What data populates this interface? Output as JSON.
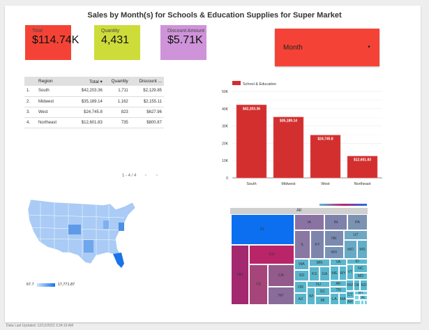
{
  "title": "Sales by Month(s) for Schools & Education Supplies for Super Market",
  "kpis": [
    {
      "label": "Total",
      "value": "$114.74K",
      "color": "#f44336"
    },
    {
      "label": "Quantity",
      "value": "4,431",
      "color": "#cddc39"
    },
    {
      "label": "Discount Amount",
      "value": "$5.71K",
      "color": "#ce93d8"
    }
  ],
  "dropdown": {
    "label": "Month",
    "icon": "caret-down-icon"
  },
  "table": {
    "headers": [
      "Region",
      "Total ▾",
      "Quantity",
      "Discount ..."
    ],
    "rows": [
      [
        "1.",
        "South",
        "$42,203.36",
        "1,711",
        "$2,129.85"
      ],
      [
        "2.",
        "Midwest",
        "$35,189.14",
        "1,162",
        "$2,155.11"
      ],
      [
        "3.",
        "West",
        "$24,745.8",
        "823",
        "$627.96"
      ],
      [
        "4.",
        "Northeast",
        "$12,601.83",
        "735",
        "$800.87"
      ]
    ],
    "pagination": "1 - 4 / 4"
  },
  "chart_data": {
    "type": "bar",
    "legend": "School & Education",
    "legend_placement": "top-left",
    "categories": [
      "South",
      "Midwest",
      "West",
      "Northeast"
    ],
    "values": [
      42203.36,
      35189.14,
      24745.8,
      12601.83
    ],
    "data_labels": [
      "$42,203.36",
      "$35,189.14",
      "$24,745.8",
      "$12,601.83"
    ],
    "yticks": [
      "0",
      "10K",
      "20K",
      "30K",
      "40K",
      "50K"
    ],
    "ylim": [
      0,
      50000
    ],
    "color": "#d32f2f",
    "grid": true
  },
  "map": {
    "legend_min": "67.7",
    "legend_max": "17,771.87",
    "color_low": "#cfe3fb",
    "color_high": "#1a73e8"
  },
  "treemap": {
    "root": "All",
    "cells": [
      {
        "label": "FL",
        "color": "#0b6ff0"
      },
      {
        "label": "OH",
        "color": "#a3286f"
      },
      {
        "label": "CO",
        "color": "#b92568"
      },
      {
        "label": "TX",
        "color": "#a6457a"
      },
      {
        "label": "CA",
        "color": "#935a8c"
      },
      {
        "label": "NY",
        "color": "#8a6c9b"
      },
      {
        "label": "IA",
        "color": "#8a73a2"
      },
      {
        "label": "IN",
        "color": "#7e81aa"
      },
      {
        "label": "PA",
        "color": "#7b92b3"
      },
      {
        "label": "IL",
        "color": "#8a78a4"
      },
      {
        "label": "KY",
        "color": "#7e85ad"
      },
      {
        "label": "NE",
        "color": "#7b8bb0"
      },
      {
        "label": "WV",
        "color": "#7893b6"
      },
      {
        "label": "UT",
        "color": "#6ea7c2"
      },
      {
        "label": "MO",
        "color": "#68aac6"
      },
      {
        "label": "MS",
        "color": "#62aec9"
      },
      {
        "label": "WA",
        "color": "#5db3cb"
      },
      {
        "label": "SD",
        "color": "#5bb5cc"
      },
      {
        "label": "OR",
        "color": "#5ab6cc"
      },
      {
        "label": "AZ",
        "color": "#5ab6cc"
      },
      {
        "label": "MN",
        "color": "#5bb5cc"
      },
      {
        "label": "KS",
        "color": "#5ab6cd"
      },
      {
        "label": "GA",
        "color": "#5ab6cd"
      },
      {
        "label": "NJ",
        "color": "#5ab7cd"
      },
      {
        "label": "WI",
        "color": "#59b7cd"
      },
      {
        "label": "SC",
        "color": "#59b7cd"
      },
      {
        "label": "MI",
        "color": "#59b7cd"
      },
      {
        "label": "VA",
        "color": "#59b7ce"
      },
      {
        "label": "ME",
        "color": "#58b8ce"
      },
      {
        "label": "WY",
        "color": "#58b8ce"
      },
      {
        "label": "AK",
        "color": "#58b8ce"
      },
      {
        "label": "TN",
        "color": "#58b8ce"
      },
      {
        "label": "LA",
        "color": "#57b9cf"
      },
      {
        "label": "MA",
        "color": "#57b9cf"
      },
      {
        "label": "ID",
        "color": "#58b8ce"
      },
      {
        "label": "VT",
        "color": "#57b9cf"
      },
      {
        "label": "NC",
        "color": "#57b9cf"
      },
      {
        "label": "MD",
        "color": "#57b9cf"
      },
      {
        "label": "NM",
        "color": "#56bad0"
      },
      {
        "label": "OK",
        "color": "#56bad0"
      },
      {
        "label": "ND",
        "color": "#56bad0"
      },
      {
        "label": "CT",
        "color": "#56bad0"
      },
      {
        "label": "AR",
        "color": "#55bbd0"
      },
      {
        "label": "MT",
        "color": "#6ccbde"
      },
      {
        "label": "AL",
        "color": "#6ccbde"
      }
    ]
  },
  "footer": "Data Last Updated: 12/12/2022 3:34:19 AM"
}
